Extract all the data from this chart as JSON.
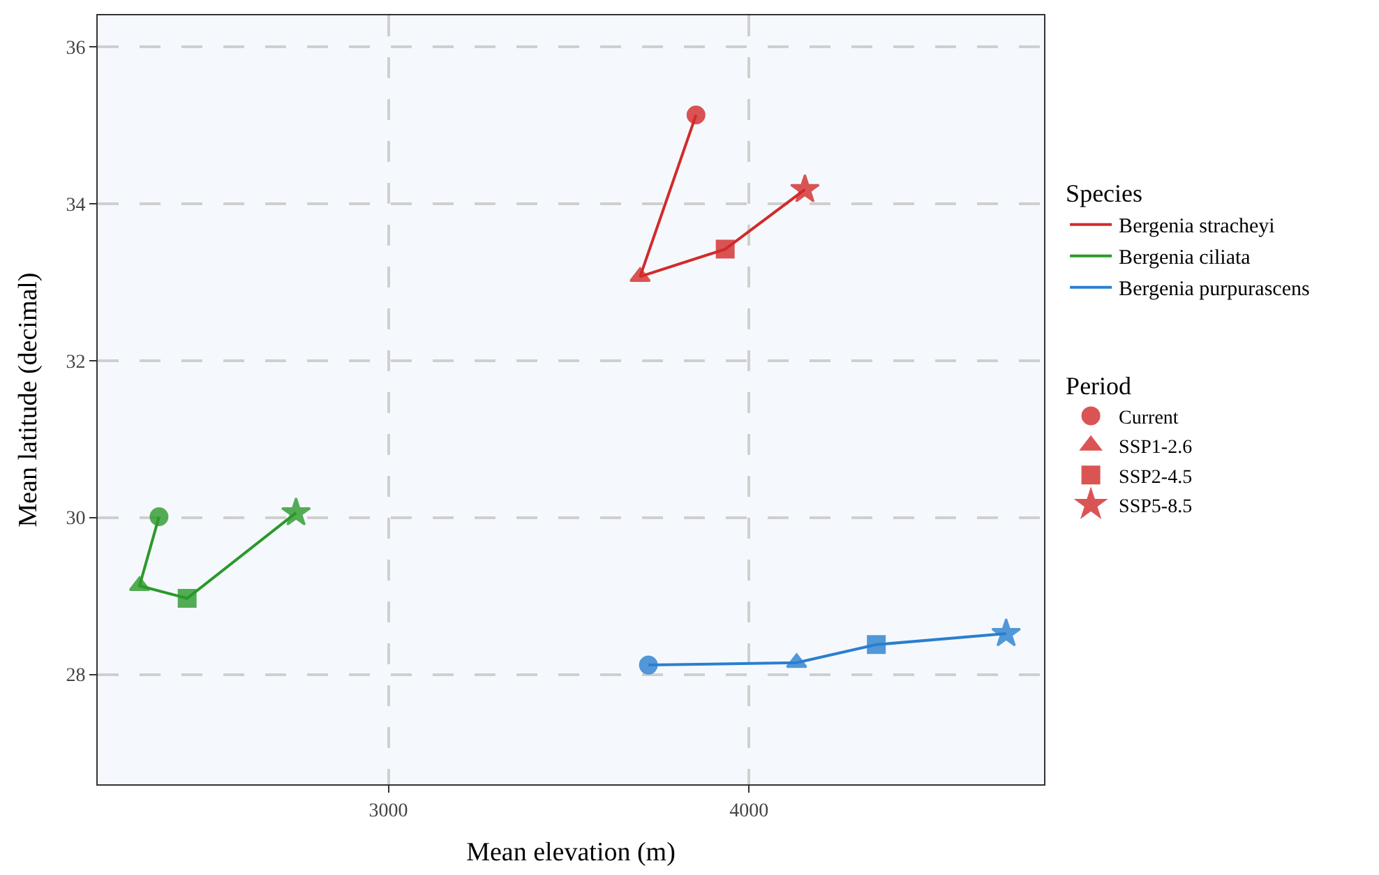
{
  "chart_data": {
    "type": "line",
    "xlabel": "Mean elevation (m)",
    "ylabel": "Mean latitude (decimal)",
    "legend_title": "Species",
    "legend": "right",
    "grid": true,
    "line_style": "solid",
    "marker": "none",
    "xlim": [
      2194,
      4818
    ],
    "ylim": [
      26.6,
      36.4
    ],
    "xticks": [
      3000,
      4000
    ],
    "yticks": [
      28,
      30,
      32,
      34,
      36
    ],
    "annotations": [
      "Period"
    ],
    "series": [
      {
        "name": "Bergenia stracheyi",
        "color": "#d32a2a",
        "x": [
          3853,
          3698,
          3934,
          4155
        ],
        "values": [
          35.13,
          33.07,
          33.42,
          34.18
        ]
      },
      {
        "name": "Bergenia ciliata",
        "color": "#2a992a",
        "x": [
          2364,
          2310,
          2442,
          2744
        ],
        "values": [
          30.01,
          29.13,
          28.97,
          30.06
        ]
      },
      {
        "name": "Bergenia purpurascens",
        "color": "#2a7fcf",
        "x": [
          3721,
          4132,
          4353,
          4713
        ],
        "values": [
          28.12,
          28.15,
          28.38,
          28.52
        ]
      },
      {
        "name": "Current",
        "type": "scatter",
        "marker": "circle",
        "x": [
          3853,
          2364,
          3721
        ],
        "values": [
          35.13,
          30.01,
          28.12
        ],
        "colors": [
          "#d32a2a",
          "#2a992a",
          "#2a7fcf"
        ]
      },
      {
        "name": "SSP1-2.6",
        "type": "scatter",
        "marker": "triangle",
        "x": [
          3698,
          2310,
          4132
        ],
        "values": [
          33.07,
          29.13,
          28.15
        ],
        "colors": [
          "#d32a2a",
          "#2a992a",
          "#2a7fcf"
        ]
      },
      {
        "name": "SSP2-4.5",
        "type": "scatter",
        "marker": "square",
        "x": [
          3934,
          2442,
          4353
        ],
        "values": [
          33.42,
          28.97,
          28.38
        ],
        "colors": [
          "#d32a2a",
          "#2a992a",
          "#2a7fcf"
        ]
      },
      {
        "name": "SSP5-8.5",
        "type": "scatter",
        "marker": "star",
        "x": [
          4155,
          2744,
          4713
        ],
        "values": [
          34.18,
          30.06,
          28.52
        ],
        "colors": [
          "#d32a2a",
          "#2a992a",
          "#2a7fcf"
        ]
      }
    ]
  }
}
